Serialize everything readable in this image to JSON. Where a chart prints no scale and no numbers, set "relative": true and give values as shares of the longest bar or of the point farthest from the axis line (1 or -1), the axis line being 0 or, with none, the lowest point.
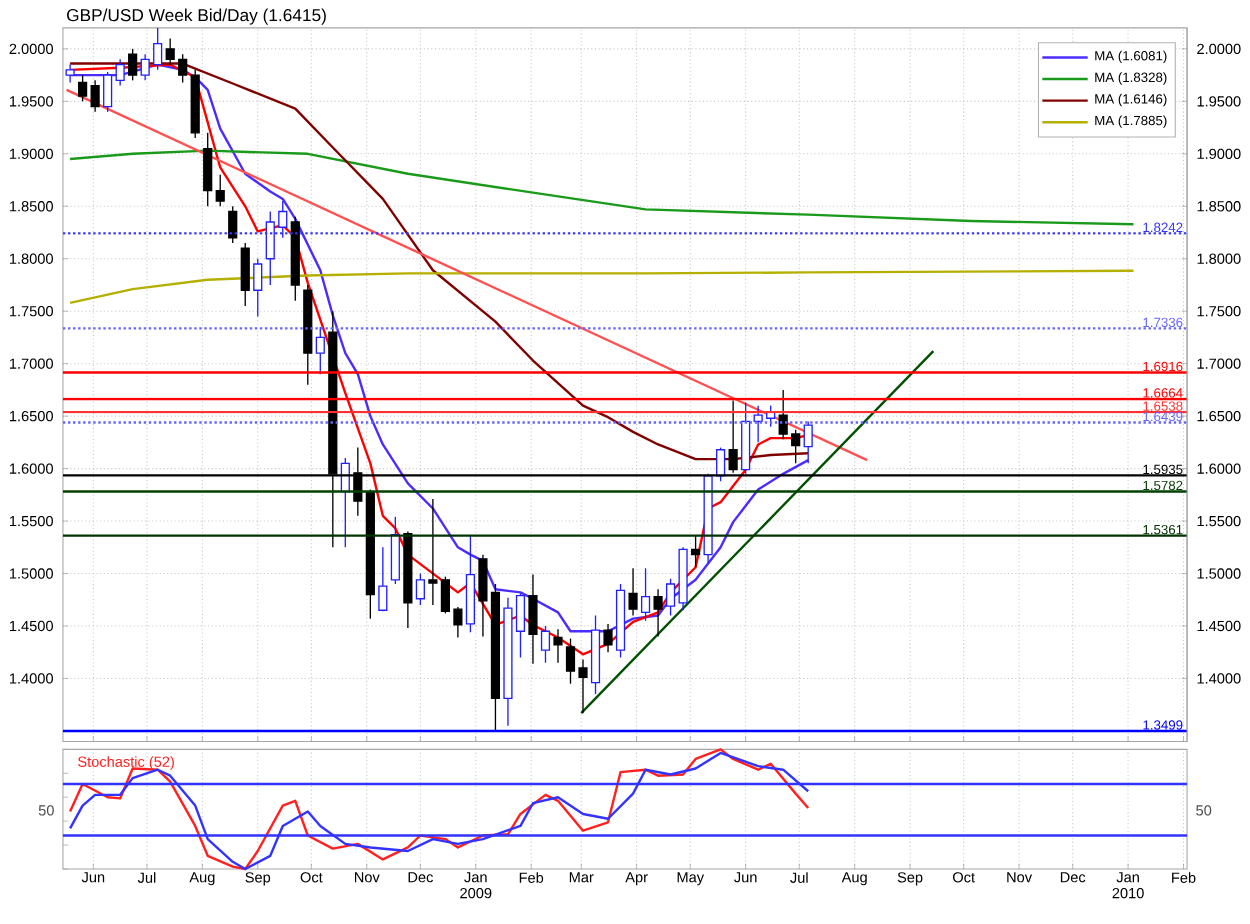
{
  "chart_data": [
    {
      "type": "candlestick",
      "title": "GBP/USD Week Bid/Day (1.6415)",
      "x": [
        "2008-05-19",
        "2008-05-26",
        "2008-06-02",
        "2008-06-09",
        "2008-06-16",
        "2008-06-23",
        "2008-06-30",
        "2008-07-07",
        "2008-07-14",
        "2008-07-21",
        "2008-07-28",
        "2008-08-04",
        "2008-08-11",
        "2008-08-18",
        "2008-08-25",
        "2008-09-01",
        "2008-09-08",
        "2008-09-15",
        "2008-09-22",
        "2008-09-29",
        "2008-10-06",
        "2008-10-13",
        "2008-10-20",
        "2008-10-27",
        "2008-11-03",
        "2008-11-10",
        "2008-11-17",
        "2008-11-24",
        "2008-12-01",
        "2008-12-08",
        "2008-12-15",
        "2008-12-22",
        "2008-12-29",
        "2009-01-05",
        "2009-01-12",
        "2009-01-19",
        "2009-01-26",
        "2009-02-02",
        "2009-02-09",
        "2009-02-16",
        "2009-02-23",
        "2009-03-02",
        "2009-03-09",
        "2009-03-16",
        "2009-03-23",
        "2009-03-30",
        "2009-04-06",
        "2009-04-13",
        "2009-04-20",
        "2009-04-27",
        "2009-05-04",
        "2009-05-11",
        "2009-05-18",
        "2009-05-25",
        "2009-06-01",
        "2009-06-08",
        "2009-06-15",
        "2009-06-22",
        "2009-06-29",
        "2009-07-06"
      ],
      "ohlc": [
        [
          1.975,
          1.985,
          1.968,
          1.98
        ],
        [
          1.968,
          1.975,
          1.95,
          1.955
        ],
        [
          1.965,
          1.97,
          1.94,
          1.945
        ],
        [
          1.945,
          1.978,
          1.94,
          1.975
        ],
        [
          1.97,
          1.99,
          1.965,
          1.985
        ],
        [
          1.995,
          2.0,
          1.97,
          1.975
        ],
        [
          1.975,
          1.995,
          1.97,
          1.99
        ],
        [
          1.985,
          2.02,
          1.98,
          2.005
        ],
        [
          2.0,
          2.01,
          1.985,
          1.99
        ],
        [
          1.99,
          1.995,
          1.968,
          1.975
        ],
        [
          1.975,
          1.98,
          1.915,
          1.92
        ],
        [
          1.905,
          1.92,
          1.85,
          1.865
        ],
        [
          1.865,
          1.88,
          1.85,
          1.855
        ],
        [
          1.845,
          1.85,
          1.815,
          1.82
        ],
        [
          1.81,
          1.815,
          1.755,
          1.77
        ],
        [
          1.77,
          1.8,
          1.745,
          1.795
        ],
        [
          1.8,
          1.845,
          1.775,
          1.835
        ],
        [
          1.83,
          1.855,
          1.82,
          1.845
        ],
        [
          1.835,
          1.84,
          1.76,
          1.775
        ],
        [
          1.77,
          1.775,
          1.68,
          1.71
        ],
        [
          1.71,
          1.735,
          1.69,
          1.725
        ],
        [
          1.73,
          1.75,
          1.525,
          1.595
        ],
        [
          1.578,
          1.61,
          1.525,
          1.605
        ],
        [
          1.596,
          1.62,
          1.555,
          1.569
        ],
        [
          1.577,
          1.58,
          1.457,
          1.48
        ],
        [
          1.465,
          1.525,
          1.464,
          1.488
        ],
        [
          1.494,
          1.554,
          1.49,
          1.537
        ],
        [
          1.538,
          1.54,
          1.448,
          1.472
        ],
        [
          1.476,
          1.5,
          1.47,
          1.494
        ],
        [
          1.494,
          1.571,
          1.47,
          1.491
        ],
        [
          1.494,
          1.497,
          1.462,
          1.464
        ],
        [
          1.466,
          1.468,
          1.439,
          1.451
        ],
        [
          1.452,
          1.536,
          1.444,
          1.499
        ],
        [
          1.514,
          1.518,
          1.44,
          1.474
        ],
        [
          1.482,
          1.49,
          1.35,
          1.381
        ],
        [
          1.381,
          1.477,
          1.355,
          1.467
        ],
        [
          1.445,
          1.481,
          1.42,
          1.479
        ],
        [
          1.479,
          1.499,
          1.414,
          1.442
        ],
        [
          1.427,
          1.45,
          1.415,
          1.445
        ],
        [
          1.439,
          1.447,
          1.415,
          1.432
        ],
        [
          1.43,
          1.438,
          1.395,
          1.407
        ],
        [
          1.41,
          1.418,
          1.367,
          1.401
        ],
        [
          1.396,
          1.46,
          1.385,
          1.446
        ],
        [
          1.446,
          1.452,
          1.425,
          1.432
        ],
        [
          1.427,
          1.49,
          1.42,
          1.484
        ],
        [
          1.481,
          1.505,
          1.46,
          1.466
        ],
        [
          1.463,
          1.505,
          1.455,
          1.478
        ],
        [
          1.478,
          1.485,
          1.44,
          1.466
        ],
        [
          1.469,
          1.495,
          1.46,
          1.49
        ],
        [
          1.472,
          1.525,
          1.465,
          1.523
        ],
        [
          1.523,
          1.536,
          1.506,
          1.518
        ],
        [
          1.518,
          1.595,
          1.51,
          1.593
        ],
        [
          1.593,
          1.62,
          1.588,
          1.618
        ],
        [
          1.618,
          1.665,
          1.596,
          1.599
        ],
        [
          1.599,
          1.663,
          1.595,
          1.645
        ],
        [
          1.645,
          1.66,
          1.625,
          1.651
        ],
        [
          1.648,
          1.66,
          1.64,
          1.654
        ],
        [
          1.651,
          1.675,
          1.628,
          1.633
        ],
        [
          1.633,
          1.637,
          1.605,
          1.622
        ],
        [
          1.621,
          1.645,
          1.605,
          1.6415
        ]
      ],
      "series": [
        {
          "type": "line",
          "name": "MA (1.6081)",
          "color": "#4b2cff",
          "x": [
            "2008-05-19",
            "2008-06-16",
            "2008-07-07",
            "2008-07-21",
            "2008-07-28",
            "2008-08-04",
            "2008-08-11",
            "2008-08-25",
            "2008-09-08",
            "2008-09-15",
            "2008-09-22",
            "2008-10-06",
            "2008-10-13",
            "2008-10-20",
            "2008-10-27",
            "2008-11-03",
            "2008-11-10",
            "2008-11-24",
            "2008-12-08",
            "2008-12-22",
            "2008-12-29",
            "2009-01-05",
            "2009-01-12",
            "2009-01-26",
            "2009-02-02",
            "2009-02-16",
            "2009-02-23",
            "2009-03-16",
            "2009-03-30",
            "2009-04-13",
            "2009-04-20",
            "2009-05-04",
            "2009-05-18",
            "2009-05-25",
            "2009-06-08",
            "2009-06-22",
            "2009-07-06"
          ],
          "values": [
            1.975,
            1.975,
            1.985,
            1.98,
            1.973,
            1.961,
            1.924,
            1.881,
            1.864,
            1.857,
            1.838,
            1.789,
            1.746,
            1.71,
            1.69,
            1.65,
            1.623,
            1.586,
            1.562,
            1.525,
            1.518,
            1.512,
            1.485,
            1.482,
            1.476,
            1.463,
            1.445,
            1.445,
            1.457,
            1.46,
            1.476,
            1.494,
            1.525,
            1.549,
            1.58,
            1.595,
            1.6081
          ]
        },
        {
          "type": "line",
          "color": "#ff0000",
          "x": [
            "2008-05-19",
            "2008-06-16",
            "2008-07-14",
            "2008-07-28",
            "2008-08-04",
            "2008-08-11",
            "2008-08-25",
            "2008-09-01",
            "2008-09-15",
            "2008-09-22",
            "2008-09-29",
            "2008-10-13",
            "2008-10-20",
            "2008-11-03",
            "2008-11-10",
            "2008-11-17",
            "2008-11-24",
            "2008-12-08",
            "2008-12-22",
            "2008-12-29",
            "2009-01-12",
            "2009-01-26",
            "2009-02-02",
            "2009-02-16",
            "2009-03-02",
            "2009-03-16",
            "2009-03-30",
            "2009-04-13",
            "2009-04-20",
            "2009-05-04",
            "2009-05-11",
            "2009-05-18",
            "2009-06-01",
            "2009-06-08",
            "2009-06-15",
            "2009-06-29",
            "2009-07-06"
          ],
          "values": [
            1.98,
            1.982,
            1.985,
            1.973,
            1.93,
            1.887,
            1.85,
            1.826,
            1.832,
            1.82,
            1.777,
            null,
            1.672,
            1.605,
            1.555,
            1.543,
            1.518,
            1.5,
            1.482,
            1.491,
            1.451,
            1.46,
            1.451,
            1.439,
            1.423,
            1.433,
            1.454,
            1.463,
            1.482,
            1.506,
            1.562,
            1.568,
            1.599,
            1.623,
            1.629,
            1.629,
            1.632
          ]
        },
        {
          "type": "line",
          "name": "MA (1.8328)",
          "color": "#1a9a1a",
          "x": [
            "2008-05-19",
            "2008-06-23",
            "2008-08-04",
            "2008-09-29",
            "2008-11-24",
            "2009-02-02",
            "2009-04-06",
            "2009-07-06",
            "2009-10-05",
            "2010-01-04"
          ],
          "values": [
            1.895,
            1.9,
            1.903,
            1.9,
            1.881,
            1.863,
            1.847,
            1.842,
            1.836,
            1.8328
          ]
        },
        {
          "type": "line",
          "name": "MA (1.6146)",
          "color": "#800000",
          "x": [
            "2008-05-19",
            "2008-07-21",
            "2008-08-18",
            "2008-09-22",
            "2008-10-13",
            "2008-11-10",
            "2008-12-08",
            "2009-01-12",
            "2009-02-02",
            "2009-03-02",
            "2009-03-16",
            "2009-03-30",
            "2009-04-13",
            "2009-05-04",
            "2009-05-25",
            "2009-06-15",
            "2009-07-06"
          ],
          "values": [
            1.986,
            1.986,
            1.967,
            1.943,
            1.906,
            1.857,
            1.789,
            1.74,
            1.703,
            1.66,
            1.649,
            1.635,
            1.623,
            1.609,
            1.609,
            1.613,
            1.6146
          ]
        },
        {
          "type": "line",
          "name": "MA (1.7885)",
          "color": "#b5b000",
          "x": [
            "2008-05-19",
            "2008-06-23",
            "2008-08-04",
            "2008-09-29",
            "2008-11-24",
            "2009-04-06",
            "2009-07-06",
            "2010-01-04"
          ],
          "values": [
            1.758,
            1.771,
            1.78,
            1.784,
            1.786,
            1.786,
            1.787,
            1.7885
          ]
        },
        {
          "type": "line",
          "color": "#ff5050",
          "x": [
            "2008-05-17",
            "2009-08-08"
          ],
          "values": [
            1.961,
            1.608
          ]
        },
        {
          "type": "line",
          "color": "#005000",
          "x": [
            "2009-03-01",
            "2009-09-14"
          ],
          "values": [
            1.367,
            1.712
          ]
        }
      ],
      "ref_lines": [
        {
          "axis": "y",
          "value": 1.8242,
          "label": "1.8242",
          "color": "#3333ff",
          "line_style": "dotted"
        },
        {
          "axis": "y",
          "value": 1.7336,
          "label": "1.7336",
          "color": "#6666ff",
          "line_style": "dotted"
        },
        {
          "axis": "y",
          "value": 1.6916,
          "label": "1.6916",
          "color": "#ff0000",
          "line_style": "solid"
        },
        {
          "axis": "y",
          "value": 1.6664,
          "label": "1.6664",
          "color": "#ff0000",
          "line_style": "solid"
        },
        {
          "axis": "y",
          "value": 1.6538,
          "label": "1.6538",
          "color": "#ff3030",
          "line_style": "solid"
        },
        {
          "axis": "y",
          "value": 1.6439,
          "label": "1.6439",
          "color": "#6666ff",
          "line_style": "dotted"
        },
        {
          "axis": "y",
          "value": 1.5935,
          "label": "1.5935",
          "color": "#000000",
          "line_style": "solid"
        },
        {
          "axis": "y",
          "value": 1.5782,
          "label": "1.5782",
          "color": "#004000",
          "line_style": "solid"
        },
        {
          "axis": "y",
          "value": 1.5361,
          "label": "1.5361",
          "color": "#003300",
          "line_style": "solid"
        },
        {
          "axis": "y",
          "value": 1.3499,
          "label": "1.3499",
          "color": "#0000ff",
          "line_style": "solid"
        }
      ],
      "xlim": [
        "2008-05-15",
        "2010-02-03"
      ],
      "xticks": [
        {
          "value": "2008-06-01",
          "label": null
        },
        {
          "value": "2008-07-01",
          "label": null
        },
        {
          "value": "2008-08-01",
          "label": null
        },
        {
          "value": "2008-09-01",
          "label": null
        },
        {
          "value": "2008-10-01",
          "label": null
        },
        {
          "value": "2008-11-01",
          "label": null
        },
        {
          "value": "2008-12-01",
          "label": null
        },
        {
          "value": "2009-01-01",
          "label": null
        },
        {
          "value": "2009-02-01",
          "label": null
        },
        {
          "value": "2009-03-01",
          "label": null
        },
        {
          "value": "2009-04-01",
          "label": null
        },
        {
          "value": "2009-05-01",
          "label": null
        },
        {
          "value": "2009-06-01",
          "label": null
        },
        {
          "value": "2009-07-01",
          "label": null
        },
        {
          "value": "2009-08-01",
          "label": null
        },
        {
          "value": "2009-09-01",
          "label": null
        },
        {
          "value": "2009-10-01",
          "label": null
        },
        {
          "value": "2009-11-01",
          "label": null
        },
        {
          "value": "2009-12-01",
          "label": null
        },
        {
          "value": "2010-01-01",
          "label": null
        },
        {
          "value": "2010-02-01",
          "label": null
        }
      ],
      "ylim": [
        1.34,
        2.02
      ],
      "yticks": [
        {
          "value": 1.4,
          "label": "1.4000"
        },
        {
          "value": 1.45,
          "label": "1.4500"
        },
        {
          "value": 1.5,
          "label": "1.5000"
        },
        {
          "value": 1.55,
          "label": "1.5500"
        },
        {
          "value": 1.6,
          "label": "1.6000"
        },
        {
          "value": 1.65,
          "label": "1.6500"
        },
        {
          "value": 1.7,
          "label": "1.7000"
        },
        {
          "value": 1.75,
          "label": "1.7500"
        },
        {
          "value": 1.8,
          "label": "1.8000"
        },
        {
          "value": 1.85,
          "label": "1.8500"
        },
        {
          "value": 1.9,
          "label": "1.9000"
        },
        {
          "value": 1.95,
          "label": "1.9500"
        },
        {
          "value": 2.0,
          "label": "2.0000"
        }
      ],
      "y2lim": [
        1.34,
        2.02
      ],
      "y2ticks": [
        {
          "value": 1.4,
          "label": "1.4000"
        },
        {
          "value": 1.45,
          "label": "1.4500"
        },
        {
          "value": 1.5,
          "label": "1.5000"
        },
        {
          "value": 1.55,
          "label": "1.5500"
        },
        {
          "value": 1.6,
          "label": "1.6000"
        },
        {
          "value": 1.65,
          "label": "1.6500"
        },
        {
          "value": 1.7,
          "label": "1.7000"
        },
        {
          "value": 1.75,
          "label": "1.7500"
        },
        {
          "value": 1.8,
          "label": "1.8000"
        },
        {
          "value": 1.85,
          "label": "1.8500"
        },
        {
          "value": 1.9,
          "label": "1.9000"
        },
        {
          "value": 1.95,
          "label": "1.9500"
        },
        {
          "value": 2.0,
          "label": "2.0000"
        }
      ],
      "grid": true,
      "legend": "top right",
      "tick_labels": "y"
    },
    {
      "type": "line",
      "title": "Stochastic (52)",
      "series": [
        {
          "color": "#ff2020",
          "x": [
            "2008-05-19",
            "2008-05-26",
            "2008-06-09",
            "2008-06-16",
            "2008-06-23",
            "2008-07-07",
            "2008-07-14",
            "2008-07-28",
            "2008-08-04",
            "2008-08-18",
            "2008-08-25",
            "2008-09-01",
            "2008-09-15",
            "2008-09-22",
            "2008-09-29",
            "2008-10-13",
            "2008-10-27",
            "2008-11-10",
            "2008-11-24",
            "2008-12-01",
            "2008-12-15",
            "2008-12-22",
            "2009-01-05",
            "2009-01-19",
            "2009-01-26",
            "2009-02-09",
            "2009-02-16",
            "2009-03-02",
            "2009-03-16",
            "2009-03-23",
            "2009-04-06",
            "2009-04-13",
            "2009-04-27",
            "2009-05-04",
            "2009-05-18",
            "2009-05-25",
            "2009-06-08",
            "2009-06-15",
            "2009-06-29",
            "2009-07-06"
          ],
          "values": [
            0.48,
            0.71,
            0.6,
            0.59,
            0.84,
            0.83,
            0.73,
            0.36,
            0.11,
            0.02,
            0,
            0.15,
            0.53,
            0.57,
            0.28,
            0.17,
            0.21,
            0.08,
            0.18,
            0.28,
            0.25,
            0.18,
            0.28,
            0.29,
            0.46,
            0.62,
            0.57,
            0.32,
            0.39,
            0.81,
            0.83,
            0.78,
            0.79,
            0.92,
            1,
            0.92,
            0.83,
            0.88,
            0.63,
            0.51
          ]
        },
        {
          "color": "#3333ff",
          "x": [
            "2008-05-19",
            "2008-05-26",
            "2008-06-02",
            "2008-06-16",
            "2008-06-23",
            "2008-07-07",
            "2008-07-14",
            "2008-07-28",
            "2008-08-04",
            "2008-08-18",
            "2008-08-25",
            "2008-09-08",
            "2008-09-15",
            "2008-09-29",
            "2008-10-06",
            "2008-10-20",
            "2008-11-03",
            "2008-11-24",
            "2008-12-08",
            "2008-12-22",
            "2009-01-05",
            "2009-01-26",
            "2009-02-02",
            "2009-02-16",
            "2009-03-02",
            "2009-03-16",
            "2009-03-30",
            "2009-04-06",
            "2009-04-20",
            "2009-05-04",
            "2009-05-18",
            "2009-06-08",
            "2009-06-22",
            "2009-07-06"
          ],
          "values": [
            0.34,
            0.53,
            0.62,
            0.62,
            0.76,
            0.83,
            0.78,
            0.53,
            0.25,
            0.06,
            0,
            0.11,
            0.36,
            0.48,
            0.36,
            0.21,
            0.18,
            0.15,
            0.25,
            0.21,
            0.25,
            0.36,
            0.55,
            0.6,
            0.46,
            0.42,
            0.63,
            0.83,
            0.79,
            0.84,
            0.97,
            0.86,
            0.83,
            0.65
          ]
        }
      ],
      "relative": true,
      "annotations": [
        "50",
        "50"
      ],
      "ref_lines": [
        {
          "axis": "y",
          "value": 0.71,
          "color": "#3333ff"
        },
        {
          "axis": "y",
          "value": 0.28,
          "color": "#3333ff"
        }
      ],
      "xlim": [
        "2008-05-15",
        "2010-02-03"
      ],
      "xticks": [
        {
          "value": "2008-06-01",
          "label": "Jun"
        },
        {
          "value": "2008-07-01",
          "label": "Jul"
        },
        {
          "value": "2008-08-01",
          "label": "Aug"
        },
        {
          "value": "2008-09-01",
          "label": "Sep"
        },
        {
          "value": "2008-10-01",
          "label": "Oct"
        },
        {
          "value": "2008-11-01",
          "label": "Nov"
        },
        {
          "value": "2008-12-01",
          "label": "Dec"
        },
        {
          "value": "2009-01-01",
          "label": "Jan 2009"
        },
        {
          "value": "2009-02-01",
          "label": "Feb"
        },
        {
          "value": "2009-03-01",
          "label": "Mar"
        },
        {
          "value": "2009-04-01",
          "label": "Apr"
        },
        {
          "value": "2009-05-01",
          "label": "May"
        },
        {
          "value": "2009-06-01",
          "label": "Jun"
        },
        {
          "value": "2009-07-01",
          "label": "Jul"
        },
        {
          "value": "2009-08-01",
          "label": "Aug"
        },
        {
          "value": "2009-09-01",
          "label": "Sep"
        },
        {
          "value": "2009-10-01",
          "label": "Oct"
        },
        {
          "value": "2009-11-01",
          "label": "Nov"
        },
        {
          "value": "2009-12-01",
          "label": "Dec"
        },
        {
          "value": "2010-01-01",
          "label": "Jan 2010"
        },
        {
          "value": "2010-02-01",
          "label": "Feb"
        }
      ],
      "grid": "x"
    }
  ]
}
